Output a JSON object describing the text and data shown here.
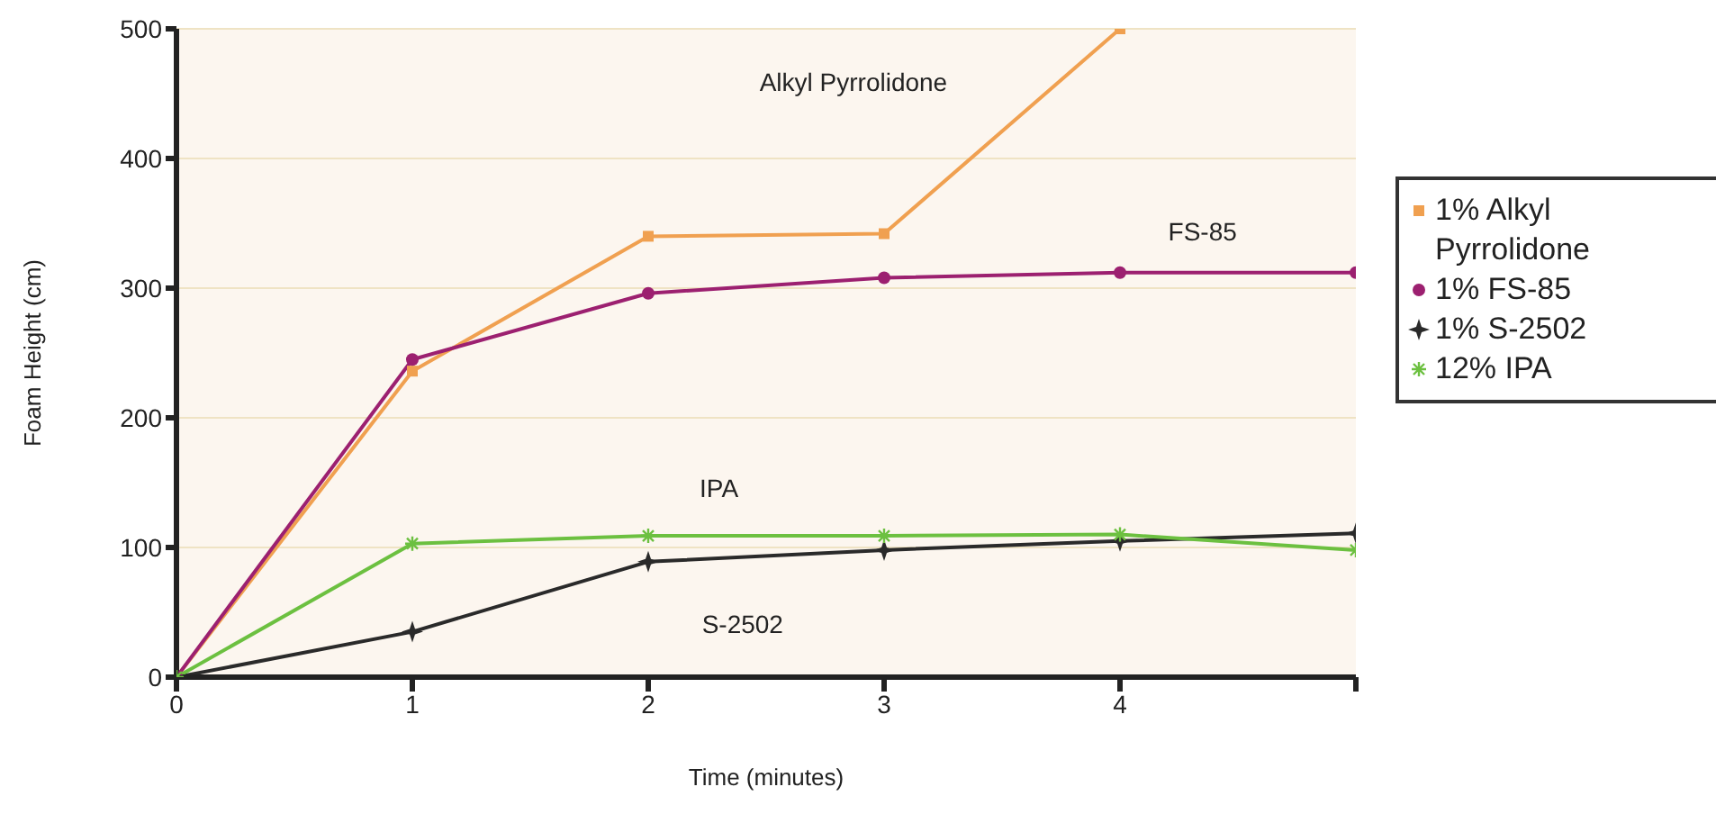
{
  "chart_data": {
    "type": "line",
    "xlabel": "Time (minutes)",
    "ylabel": "Foam Height (cm)",
    "x": [
      0,
      1,
      2,
      3,
      4,
      5
    ],
    "xlim": [
      0,
      5
    ],
    "xticks": [
      0,
      1,
      2,
      3,
      4,
      {
        "value": 5,
        "label": null
      }
    ],
    "ylim": [
      0,
      500
    ],
    "yticks": [
      0,
      100,
      200,
      300,
      400,
      500
    ],
    "grid": "y",
    "legend": "right",
    "series": [
      {
        "name": "1% Alkyl Pyrrolidone",
        "color": "#f0a050",
        "marker": "square",
        "values": [
          0,
          236,
          340,
          342,
          500,
          null
        ]
      },
      {
        "name": "1% FS-85",
        "color": "#9c2070",
        "marker": "circle",
        "values": [
          0,
          245,
          296,
          308,
          312,
          312
        ]
      },
      {
        "name": "1% S-2502",
        "color": "#2a2a2a",
        "marker": "star",
        "values": [
          0,
          35,
          89,
          98,
          105,
          111
        ]
      },
      {
        "name": "12% IPA",
        "color": "#6cc040",
        "marker": "cross",
        "values": [
          0,
          103,
          109,
          109,
          110,
          98
        ]
      }
    ],
    "annotations": [
      "Alkyl Pyrrolidone",
      "FS-85",
      "IPA",
      "S-2502"
    ]
  }
}
